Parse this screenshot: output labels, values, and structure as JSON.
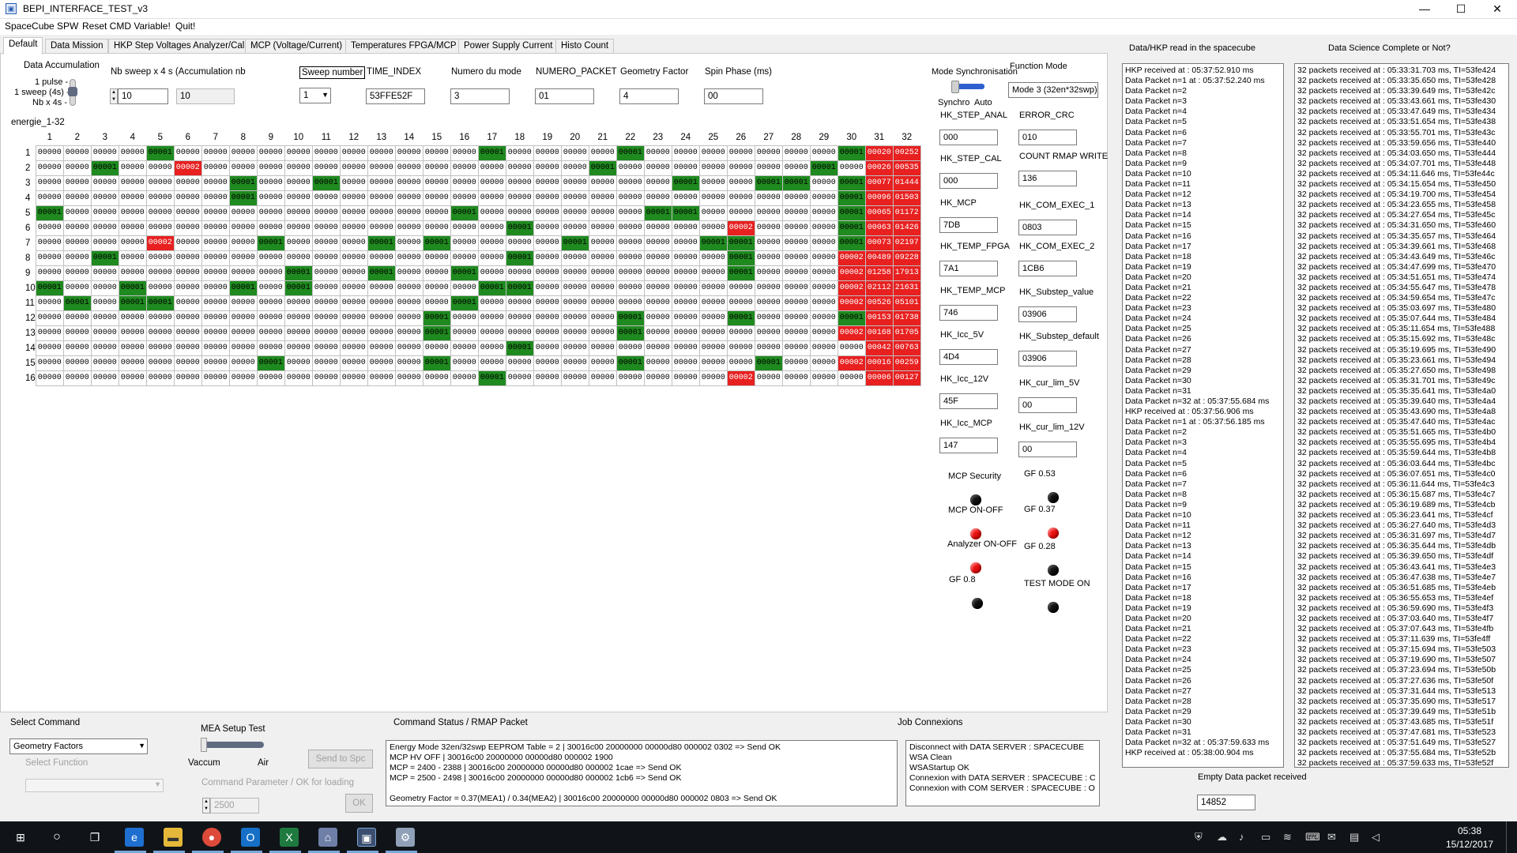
{
  "window": {
    "title": "BEPI_INTERFACE_TEST_v3",
    "minimize": "—",
    "maximize": "☐",
    "close": "✕"
  },
  "menu": [
    "SpaceCube SPW",
    "Reset CMD Variable!",
    "Quit!"
  ],
  "tabs": [
    "Default",
    "Data Mission",
    "HKP Step Voltages Analyzer/Cal",
    "MCP (Voltage/Current)",
    "Temperatures FPGA/MCP",
    "Power Supply Current",
    "Histo Count"
  ],
  "accum": {
    "title": "Data Accumulation",
    "opt1": "1 pulse -",
    "opt2": "1 sweep (4s) -",
    "opt3": "Nb x 4s -"
  },
  "fields": {
    "nb_sweep_label": "Nb sweep x 4 s (Accumulation nb",
    "nb_sweep_value": "10",
    "nb_sweep_value2": "10",
    "sweep_number_label": "Sweep number",
    "sweep_number_value": "1",
    "time_index_label": "TIME_INDEX",
    "time_index_value": "53FFE52F",
    "numero_mode_label": "Numero du mode",
    "numero_mode_value": "3",
    "numero_packet_label": "NUMERO_PACKET",
    "numero_packet_value": "01",
    "geometry_label": "Geometry Factor",
    "geometry_value": "4",
    "spin_label": "Spin Phase (ms)",
    "spin_value": "00"
  },
  "grid_label": "energie_1-32",
  "grid_cols": [
    "1",
    "2",
    "3",
    "4",
    "5",
    "6",
    "7",
    "8",
    "9",
    "10",
    "11",
    "12",
    "13",
    "14",
    "15",
    "16",
    "17",
    "18",
    "19",
    "20",
    "21",
    "22",
    "23",
    "24",
    "25",
    "26",
    "27",
    "28",
    "29",
    "30",
    "31",
    "32"
  ],
  "grid_rows": [
    {
      "n": "1",
      "last": [
        "00020",
        "00252"
      ],
      "green": [
        5,
        17,
        22,
        30
      ],
      "red": [
        31,
        32
      ]
    },
    {
      "n": "2",
      "last": [
        "00026",
        "00535"
      ],
      "green": [
        3,
        21,
        29
      ],
      "red": [
        6,
        31,
        32
      ]
    },
    {
      "n": "3",
      "last": [
        "00077",
        "01444"
      ],
      "green": [
        8,
        11,
        24,
        27,
        28,
        30
      ],
      "red": [
        31,
        32
      ]
    },
    {
      "n": "4",
      "last": [
        "00096",
        "01503"
      ],
      "green": [
        8,
        30
      ],
      "red": [
        31,
        32
      ]
    },
    {
      "n": "5",
      "last": [
        "00065",
        "01172"
      ],
      "green": [
        1,
        16,
        23,
        24,
        30
      ],
      "red": [
        31,
        32
      ]
    },
    {
      "n": "6",
      "last": [
        "00063",
        "01426"
      ],
      "green": [
        18,
        30
      ],
      "red": [
        26,
        31,
        32
      ]
    },
    {
      "n": "7",
      "last": [
        "00073",
        "02197"
      ],
      "green": [
        9,
        13,
        15,
        20,
        25,
        26,
        30
      ],
      "red": [
        5,
        31,
        32
      ]
    },
    {
      "n": "8",
      "last": [
        "00489",
        "09228"
      ],
      "green": [
        3,
        18,
        26
      ],
      "red": [
        30,
        31,
        32
      ]
    },
    {
      "n": "9",
      "last": [
        "01258",
        "17913"
      ],
      "green": [
        10,
        13,
        16,
        26
      ],
      "red": [
        30,
        31,
        32
      ]
    },
    {
      "n": "10",
      "last": [
        "02112",
        "21631"
      ],
      "green": [
        1,
        4,
        8,
        10,
        17,
        18
      ],
      "red": [
        30,
        31,
        32
      ]
    },
    {
      "n": "11",
      "last": [
        "00526",
        "05101"
      ],
      "green": [
        2,
        4,
        5,
        16
      ],
      "red": [
        30,
        31,
        32
      ]
    },
    {
      "n": "12",
      "last": [
        "00153",
        "01738"
      ],
      "green": [
        15,
        22,
        26,
        30
      ],
      "red": [
        31,
        32
      ]
    },
    {
      "n": "13",
      "last": [
        "00168",
        "01705"
      ],
      "green": [
        15,
        22
      ],
      "red": [
        30,
        31,
        32
      ]
    },
    {
      "n": "14",
      "last": [
        "00042",
        "00763"
      ],
      "green": [
        18
      ],
      "red": [
        31,
        32
      ]
    },
    {
      "n": "15",
      "last": [
        "00016",
        "00259"
      ],
      "green": [
        9,
        15,
        22,
        27
      ],
      "red": [
        30,
        31,
        32
      ]
    },
    {
      "n": "16",
      "last": [
        "00006",
        "00127"
      ],
      "green": [
        17
      ],
      "red": [
        26,
        31,
        32
      ]
    }
  ],
  "grid_zero": "00000",
  "grid_one": "00001",
  "grid_red_special": "00002",
  "mode": {
    "sync_label": "Mode Synchronisation",
    "synchro": "Synchro",
    "auto": "Auto",
    "function_label": "Function Mode",
    "function_value": "Mode 3 (32en*32swp)"
  },
  "hk_left": [
    {
      "label": "HK_STEP_ANAL",
      "value": "000"
    },
    {
      "label": "HK_STEP_CAL",
      "value": "000"
    },
    {
      "label": "HK_MCP",
      "value": "7DB"
    },
    {
      "label": "HK_TEMP_FPGA",
      "value": "7A1"
    },
    {
      "label": "HK_TEMP_MCP",
      "value": "746"
    },
    {
      "label": "HK_Icc_5V",
      "value": "4D4"
    },
    {
      "label": "HK_Icc_12V",
      "value": "45F"
    },
    {
      "label": "HK_Icc_MCP",
      "value": "147"
    }
  ],
  "hk_right": [
    {
      "label": "ERROR_CRC",
      "value": "010"
    },
    {
      "label": "COUNT RMAP WRITE",
      "value": "136"
    },
    {
      "label": "HK_COM_EXEC_1",
      "value": "0803"
    },
    {
      "label": "HK_COM_EXEC_2",
      "value": "1CB6"
    },
    {
      "label": "HK_Substep_value",
      "value": "03906"
    },
    {
      "label": "HK_Substep_default",
      "value": "03906"
    },
    {
      "label": "HK_cur_lim_5V",
      "value": "00"
    },
    {
      "label": "HK_cur_lim_12V",
      "value": "00"
    }
  ],
  "leds": {
    "mcp_security": "MCP Security",
    "mcp_onoff": "MCP ON-OFF",
    "analyzer": "Analyzer ON-OFF",
    "gf08": "GF 0.8",
    "gf053": "GF 0.53",
    "gf037": "GF 0.37",
    "gf028": "GF 0.28",
    "test_mode": "TEST MODE ON"
  },
  "bottom": {
    "select_command": "Select Command",
    "command_value": "Geometry Factors",
    "select_function": "Select Function",
    "mea_setup": "MEA Setup Test",
    "vaccum": "Vaccum",
    "air": "Air",
    "send_spc": "Send to Spc",
    "cmd_param": "Command Parameter / OK for loading",
    "param_value": "2500",
    "ok": "OK",
    "cmd_status_title": "Command Status / RMAP Packet",
    "cmd_status_lines": [
      "Energy Mode 32en/32swp EEPROM Table = 2    | 30016c00 20000000 00000d80 000002 0302    => Send OK",
      "MCP HV OFF     | 30016c00 20000000 00000d80 000002 1900",
      "MCP = 2400 - 2388    | 30016c00 20000000 00000d80 000002 1cae    => Send OK",
      "MCP = 2500 - 2498    | 30016c00 20000000 00000d80 000002 1cb6    => Send OK",
      "",
      "Geometry Factor = 0.37(MEA1) / 0.34(MEA2)    | 30016c00 20000000 00000d80 000002 0803    => Send OK"
    ],
    "job_title": "Job Connexions",
    "job_lines": [
      "Disconnect with DATA SERVER : SPACECUBE",
      "WSA Clean",
      "WSAStartup OK",
      "Connexion with DATA SERVER : SPACECUBE : C",
      "Connexion with COM SERVER : SPACECUBE : O"
    ]
  },
  "hkp_title": "Data/HKP read in the spacecube",
  "hkp_lines": [
    "HKP received at : 05:37:52.910 ms",
    "Data Packet n=1 at : 05:37:52.240 ms",
    "Data Packet n=2",
    "Data Packet n=3",
    "Data Packet n=4",
    "Data Packet n=5",
    "Data Packet n=6",
    "Data Packet n=7",
    "Data Packet n=8",
    "Data Packet n=9",
    "Data Packet n=10",
    "Data Packet n=11",
    "Data Packet n=12",
    "Data Packet n=13",
    "Data Packet n=14",
    "Data Packet n=15",
    "Data Packet n=16",
    "Data Packet n=17",
    "Data Packet n=18",
    "Data Packet n=19",
    "Data Packet n=20",
    "Data Packet n=21",
    "Data Packet n=22",
    "Data Packet n=23",
    "Data Packet n=24",
    "Data Packet n=25",
    "Data Packet n=26",
    "Data Packet n=27",
    "Data Packet n=28",
    "Data Packet n=29",
    "Data Packet n=30",
    "Data Packet n=31",
    "Data Packet n=32 at : 05:37:55.684 ms",
    "HKP received at : 05:37:56.906 ms",
    "Data Packet n=1 at : 05:37:56.185 ms",
    "Data Packet n=2",
    "Data Packet n=3",
    "Data Packet n=4",
    "Data Packet n=5",
    "Data Packet n=6",
    "Data Packet n=7",
    "Data Packet n=8",
    "Data Packet n=9",
    "Data Packet n=10",
    "Data Packet n=11",
    "Data Packet n=12",
    "Data Packet n=13",
    "Data Packet n=14",
    "Data Packet n=15",
    "Data Packet n=16",
    "Data Packet n=17",
    "Data Packet n=18",
    "Data Packet n=19",
    "Data Packet n=20",
    "Data Packet n=21",
    "Data Packet n=22",
    "Data Packet n=23",
    "Data Packet n=24",
    "Data Packet n=25",
    "Data Packet n=26",
    "Data Packet n=27",
    "Data Packet n=28",
    "Data Packet n=29",
    "Data Packet n=30",
    "Data Packet n=31",
    "Data Packet n=32 at : 05:37:59.633 ms",
    "HKP received at : 05:38:00.904 ms"
  ],
  "sci_title": "Data Science Complete or Not?",
  "sci_lines": [
    "32 packets received at : 05:33:31.703 ms, TI=53fe424",
    "32 packets received at : 05:33:35.650 ms, TI=53fe428",
    "32 packets received at : 05:33:39.649 ms, TI=53fe42c",
    "32 packets received at : 05:33:43.661 ms, TI=53fe430",
    "32 packets received at : 05:33:47.649 ms, TI=53fe434",
    "32 packets received at : 05:33:51.654 ms, TI=53fe438",
    "32 packets received at : 05:33:55.701 ms, TI=53fe43c",
    "32 packets received at : 05:33:59.656 ms, TI=53fe440",
    "32 packets received at : 05:34:03.650 ms, TI=53fe444",
    "32 packets received at : 05:34:07.701 ms, TI=53fe448",
    "32 packets received at : 05:34:11.646 ms, TI=53fe44c",
    "32 packets received at : 05:34:15.654 ms, TI=53fe450",
    "32 packets received at : 05:34:19.700 ms, TI=53fe454",
    "32 packets received at : 05:34:23.655 ms, TI=53fe458",
    "32 packets received at : 05:34:27.654 ms, TI=53fe45c",
    "32 packets received at : 05:34:31.650 ms, TI=53fe460",
    "32 packets received at : 05:34:35.657 ms, TI=53fe464",
    "32 packets received at : 05:34:39.661 ms, TI=53fe468",
    "32 packets received at : 05:34:43.649 ms, TI=53fe46c",
    "32 packets received at : 05:34:47.699 ms, TI=53fe470",
    "32 packets received at : 05:34:51.651 ms, TI=53fe474",
    "32 packets received at : 05:34:55.647 ms, TI=53fe478",
    "32 packets received at : 05:34:59.654 ms, TI=53fe47c",
    "32 packets received at : 05:35:03.697 ms, TI=53fe480",
    "32 packets received at : 05:35:07.644 ms, TI=53fe484",
    "32 packets received at : 05:35:11.654 ms, TI=53fe488",
    "32 packets received at : 05:35:15.692 ms, TI=53fe48c",
    "32 packets received at : 05:35:19.695 ms, TI=53fe490",
    "32 packets received at : 05:35:23.661 ms, TI=53fe494",
    "32 packets received at : 05:35:27.650 ms, TI=53fe498",
    "32 packets received at : 05:35:31.701 ms, TI=53fe49c",
    "32 packets received at : 05:35:35.641 ms, TI=53fe4a0",
    "32 packets received at : 05:35:39.640 ms, TI=53fe4a4",
    "32 packets received at : 05:35:43.690 ms, TI=53fe4a8",
    "32 packets received at : 05:35:47.640 ms, TI=53fe4ac",
    "32 packets received at : 05:35:51.665 ms, TI=53fe4b0",
    "32 packets received at : 05:35:55.695 ms, TI=53fe4b4",
    "32 packets received at : 05:35:59.644 ms, TI=53fe4b8",
    "32 packets received at : 05:36:03.644 ms, TI=53fe4bc",
    "32 packets received at : 05:36:07.651 ms, TI=53fe4c0",
    "32 packets received at : 05:36:11.644 ms, TI=53fe4c3",
    "32 packets received at : 05:36:15.687 ms, TI=53fe4c7",
    "32 packets received at : 05:36:19.689 ms, TI=53fe4cb",
    "32 packets received at : 05:36:23.641 ms, TI=53fe4cf",
    "32 packets received at : 05:36:27.640 ms, TI=53fe4d3",
    "32 packets received at : 05:36:31.697 ms, TI=53fe4d7",
    "32 packets received at : 05:36:35.644 ms, TI=53fe4db",
    "32 packets received at : 05:36:39.650 ms, TI=53fe4df",
    "32 packets received at : 05:36:43.641 ms, TI=53fe4e3",
    "32 packets received at : 05:36:47.638 ms, TI=53fe4e7",
    "32 packets received at : 05:36:51.685 ms, TI=53fe4eb",
    "32 packets received at : 05:36:55.653 ms, TI=53fe4ef",
    "32 packets received at : 05:36:59.690 ms, TI=53fe4f3",
    "32 packets received at : 05:37:03.640 ms, TI=53fe4f7",
    "32 packets received at : 05:37:07.643 ms, TI=53fe4fb",
    "32 packets received at : 05:37:11.639 ms, TI=53fe4ff",
    "32 packets received at : 05:37:15.694 ms, TI=53fe503",
    "32 packets received at : 05:37:19.690 ms, TI=53fe507",
    "32 packets received at : 05:37:23.694 ms, TI=53fe50b",
    "32 packets received at : 05:37:27.636 ms, TI=53fe50f",
    "32 packets received at : 05:37:31.644 ms, TI=53fe513",
    "32 packets received at : 05:37:35.690 ms, TI=53fe517",
    "32 packets received at : 05:37:39.649 ms, TI=53fe51b",
    "32 packets received at : 05:37:43.685 ms, TI=53fe51f",
    "32 packets received at : 05:37:47.681 ms, TI=53fe523",
    "32 packets received at : 05:37:51.649 ms, TI=53fe527",
    "32 packets received at : 05:37:55.684 ms, TI=53fe52b",
    "32 packets received at : 05:37:59.633 ms, TI=53fe52f"
  ],
  "empty_label": "Empty Data packet received",
  "empty_value": "14852",
  "clock": {
    "time": "05:38",
    "date": "15/12/2017"
  }
}
